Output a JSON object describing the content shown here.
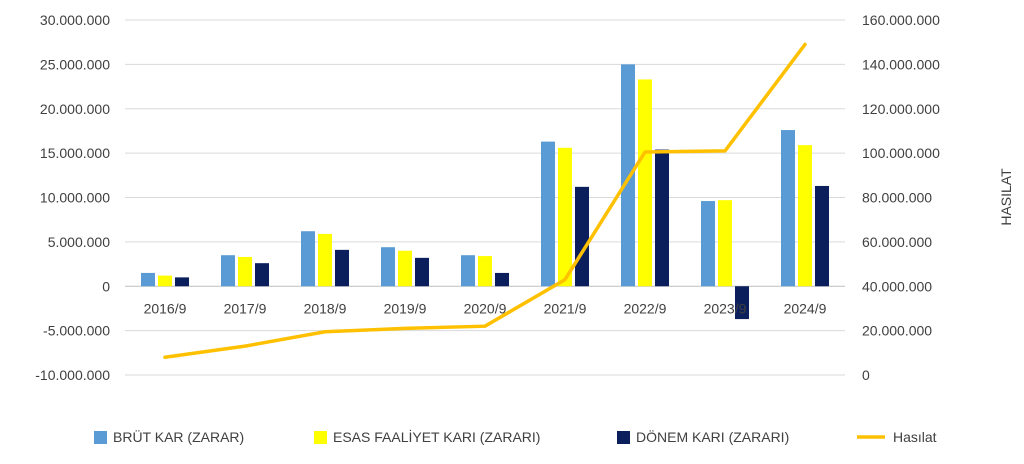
{
  "chart_data": {
    "type": "bar",
    "categories": [
      "2016/9",
      "2017/9",
      "2018/9",
      "2019/9",
      "2020/9",
      "2021/9",
      "2022/9",
      "2023/9",
      "2024/9"
    ],
    "series": [
      {
        "name": "BRÜT KAR (ZARAR)",
        "kind": "bar",
        "axis": "left",
        "color": "#5B9BD5",
        "values": [
          1500000,
          3500000,
          6200000,
          4400000,
          3500000,
          16300000,
          25000000,
          9600000,
          17600000
        ]
      },
      {
        "name": "ESAS FAALİYET KARI (ZARARI)",
        "kind": "bar",
        "axis": "left",
        "color": "#FFFF00",
        "values": [
          1200000,
          3300000,
          5900000,
          4000000,
          3400000,
          15600000,
          23300000,
          9700000,
          15900000
        ]
      },
      {
        "name": "DÖNEM KARI (ZARARI)",
        "kind": "bar",
        "axis": "left",
        "color": "#0B1F5C",
        "values": [
          1000000,
          2600000,
          4100000,
          3200000,
          1500000,
          11200000,
          15400000,
          -3700000,
          11300000
        ]
      },
      {
        "name": "Hasılat",
        "kind": "line",
        "axis": "right",
        "color": "#FFC000",
        "values": [
          8000000,
          13000000,
          19500000,
          21000000,
          22000000,
          43000000,
          100500000,
          101000000,
          149000000
        ]
      }
    ],
    "y_left": {
      "ylim": [
        -10000000,
        30000000
      ],
      "ticks": [
        30000000,
        25000000,
        20000000,
        15000000,
        10000000,
        5000000,
        0,
        -5000000,
        -10000000
      ],
      "tick_labels": [
        "30.000.000",
        "25.000.000",
        "20.000.000",
        "15.000.000",
        "10.000.000",
        "5.000.000",
        "0",
        "-5.000.000",
        "-10.000.000"
      ]
    },
    "y_right": {
      "ylabel": "HASILAT",
      "ylim": [
        0,
        160000000
      ],
      "ticks": [
        160000000,
        140000000,
        120000000,
        100000000,
        80000000,
        60000000,
        40000000,
        20000000,
        0
      ],
      "tick_labels": [
        "160.000.000",
        "140.000.000",
        "120.000.000",
        "100.000.000",
        "80.000.000",
        "60.000.000",
        "40.000.000",
        "20.000.000",
        "0"
      ]
    },
    "grid": true,
    "legend": "bottom"
  }
}
